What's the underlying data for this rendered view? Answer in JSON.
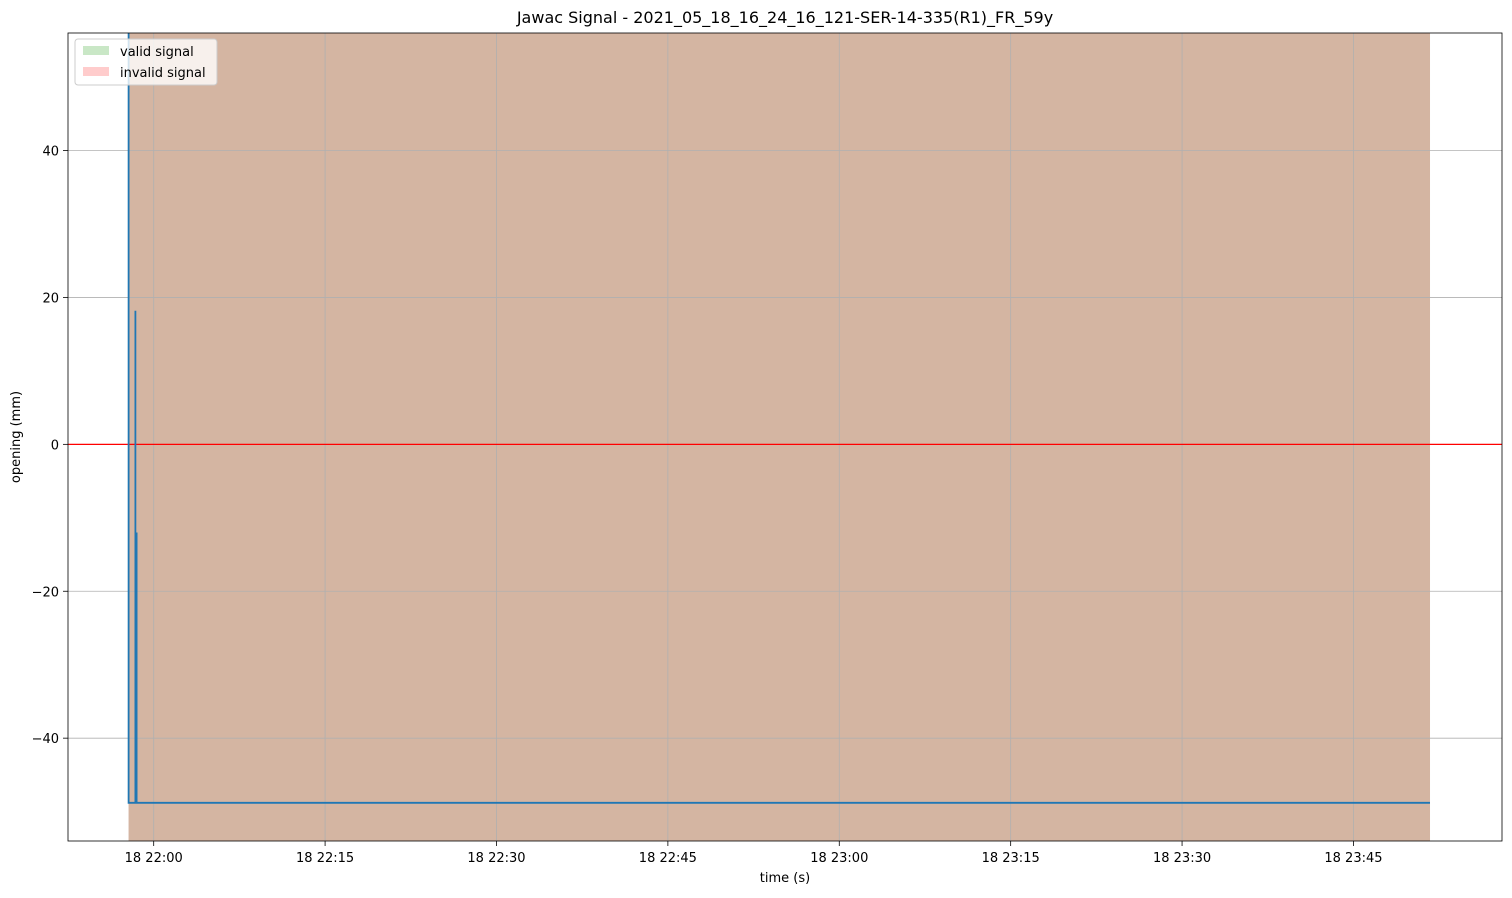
{
  "chart_data": {
    "type": "line",
    "title": "Jawac Signal - 2021_05_18_16_24_16_121-SER-14-335(R1)_FR_59y",
    "xlabel": "time (s)",
    "ylabel": "opening (mm)",
    "x_ticks": [
      "18 22:00",
      "18 22:15",
      "18 22:30",
      "18 22:45",
      "18 23:00",
      "18 23:15",
      "18 23:30",
      "18 23:45"
    ],
    "y_ticks": [
      "40",
      "20",
      "0",
      "−20",
      "−40"
    ],
    "x_range_minutes": [
      1312.5,
      1438.0
    ],
    "y_range": [
      -54,
      56
    ],
    "grid": true,
    "legend_placement": "top-left",
    "legend": [
      {
        "label": "valid signal",
        "color": "#c9e7c6"
      },
      {
        "label": "invalid signal",
        "color": "#ffcccc"
      }
    ],
    "shaded_regions": [
      {
        "start_minute": 1317.8,
        "end_minute": 1431.7,
        "color": "#d4b5a2"
      }
    ],
    "reference_line": {
      "y": 0,
      "color": "#ff0000"
    },
    "series": [
      {
        "color": "#1f77b4",
        "points_minute_value": [
          [
            1317.8,
            56
          ],
          [
            1317.8,
            -48.8
          ],
          [
            1318.4,
            -48.8
          ],
          [
            1318.4,
            18.2
          ],
          [
            1318.4,
            -48.8
          ],
          [
            1318.5,
            -48.8
          ],
          [
            1318.5,
            -12.0
          ],
          [
            1318.5,
            -48.8
          ],
          [
            1431.7,
            -48.8
          ]
        ]
      }
    ]
  }
}
